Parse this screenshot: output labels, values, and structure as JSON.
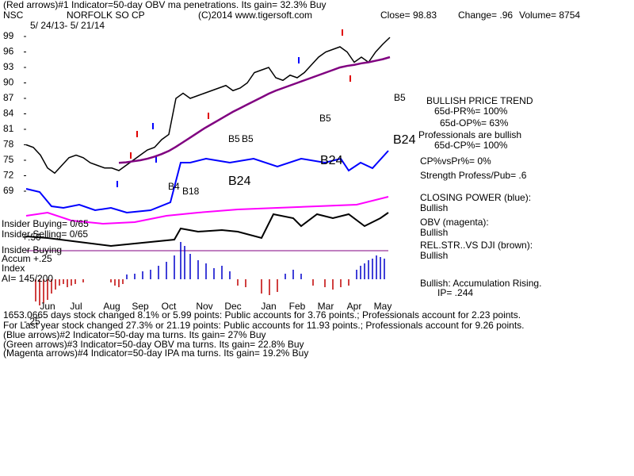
{
  "header": {
    "line1": "(Red arrows)#1 Indicator=50-day OBV ma penetrations. Its gain= 32.3% Buy",
    "ticker": "NSC",
    "name": "NORFOLK SO CP",
    "source": "(C)2014 www.tigersoft.com",
    "close": "Close=  98.83",
    "change": "Change= .96",
    "volume": "Volume= 8754",
    "dates": "5/ 24/13- 5/ 21/14"
  },
  "chart_data": {
    "type": "line",
    "categories": [
      null,
      null,
      null,
      "Jun",
      null,
      null,
      null,
      "Jul",
      null,
      null,
      null,
      null,
      "Aug",
      null,
      null,
      null,
      "Sep",
      null,
      null,
      null,
      "Oct",
      null,
      null,
      null,
      null,
      "Nov",
      null,
      null,
      null,
      "Dec",
      null,
      null,
      null,
      null,
      "Jan",
      null,
      null,
      null,
      "Feb",
      null,
      null,
      null,
      "Mar",
      null,
      null,
      null,
      "Apr",
      null,
      null,
      null,
      "May",
      null
    ],
    "series": [
      {
        "name": "Price",
        "color": "#000000",
        "values": [
          78,
          77.5,
          76,
          73.5,
          72.5,
          74,
          75.5,
          76,
          75.5,
          74.5,
          74,
          73.5,
          73.5,
          73,
          74,
          75,
          76,
          77,
          77.5,
          79,
          80,
          87,
          88,
          87,
          87.5,
          88,
          88.5,
          89,
          89.5,
          88.5,
          89,
          90,
          92,
          92.5,
          93,
          91,
          90.5,
          91.5,
          91,
          92,
          93.5,
          95,
          96,
          96.5,
          97,
          96,
          94,
          95,
          94,
          96,
          97.5,
          98.83
        ]
      },
      {
        "name": "65-day ma",
        "color": "#800080",
        "values": [
          null,
          null,
          null,
          null,
          null,
          null,
          null,
          null,
          null,
          null,
          null,
          null,
          null,
          74.5,
          74.6,
          74.8,
          75,
          75.3,
          75.7,
          76.2,
          76.8,
          77.6,
          78.5,
          79.4,
          80.3,
          81.2,
          82,
          82.8,
          83.6,
          84.4,
          85.1,
          85.8,
          86.5,
          87.2,
          87.9,
          88.5,
          89,
          89.5,
          90,
          90.5,
          91,
          91.5,
          92,
          92.5,
          93,
          93.3,
          93.5,
          93.8,
          94,
          94.3,
          94.6,
          95
        ]
      }
    ],
    "ylim": [
      67,
      101.5
    ],
    "yticks": [
      69,
      72,
      75,
      78,
      81,
      84,
      87,
      90,
      93,
      96,
      99
    ],
    "annotations": [
      "B5",
      "B5",
      "B5",
      "B5",
      "B24",
      "B24",
      "B24",
      "B18",
      "B4"
    ]
  },
  "right_panel": [
    "BULLISH PRICE TREND",
    "65d-PR%= 100%",
    "65d-OP%= 63%",
    "Professionals are bullish",
    "65d-CP%= 100%",
    "CP%vsPr%=  0%",
    "Strength Profess/Pub= .6",
    "CLOSING POWER (blue):",
    "Bullish",
    "OBV (magenta):",
    "Bullish",
    "REL.STR..VS DJI (brown):",
    "Bullish",
    "Bullish: Accumulation Rising.",
    "IP=  .244"
  ],
  "left_labels": [
    "Insider Buying= 0/65",
    "Insider Selling= 0/65",
    "Insider Buying",
    "Accum +.25",
    "+.50",
    "Index",
    "AI= 145/200",
    "-.25"
  ],
  "footer": [
    "1653.0665 days stock changed  8.1% or  5.99 points:  Public accounts for  3.76 points.;  Professionals account for  2.23 points.",
    "For Last year stock changed  27.3% or  21.19 points:  Public accounts for  11.93 points.;  Professionals account for  9.26 points.",
    "(Blue arrows)#2 Indicator=50-day ma turns. Its gain= 27% Buy",
    "(Green arrows)#3 Indicator=50-day OBV ma turns. Its gain= 22.8% Buy",
    "(Magenta arrows)#4 Indicator=50-day IPA ma turns. Its gain= 19.2% Buy"
  ]
}
